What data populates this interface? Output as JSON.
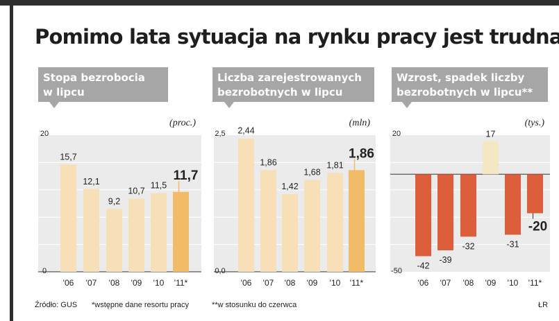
{
  "title": "Pomimo lata sytuacja na rynku pracy jest trudna",
  "chart_data": [
    {
      "type": "bar",
      "title": "Stopa bezrobocia w lipcu",
      "unit": "(proc.)",
      "categories": [
        "'06",
        "'07",
        "'08",
        "'09",
        "'10",
        "'11*"
      ],
      "values": [
        15.7,
        12.1,
        9.2,
        10.7,
        11.5,
        11.7
      ],
      "value_labels": [
        "15,7",
        "12,1",
        "9,2",
        "10,7",
        "11,5",
        "11,7"
      ],
      "ylim": [
        0,
        20
      ],
      "yticks": [
        "0",
        "20"
      ],
      "highlight_index": 5
    },
    {
      "type": "bar",
      "title": "Liczba zarejestrowanych bezrobotnych w lipcu",
      "unit": "(mln)",
      "categories": [
        "'06",
        "'07",
        "'08",
        "'09",
        "'10",
        "'11*"
      ],
      "values": [
        2.44,
        1.86,
        1.42,
        1.68,
        1.81,
        1.86
      ],
      "value_labels": [
        "2,44",
        "1,86",
        "1,42",
        "1,68",
        "1,81",
        "1,86"
      ],
      "ylim": [
        0,
        2.5
      ],
      "yticks": [
        "0,0",
        "2,5"
      ],
      "highlight_index": 5
    },
    {
      "type": "bar",
      "title": "Wzrost, spadek liczby bezrobotnych w lipcu**",
      "unit": "(tys.)",
      "categories": [
        "'06",
        "'07",
        "'08",
        "'09",
        "'10",
        "'11*"
      ],
      "values": [
        -42,
        -39,
        -32,
        17,
        -31,
        -20
      ],
      "value_labels": [
        "-42",
        "-39",
        "-32",
        "17",
        "-31",
        "-20"
      ],
      "ylim": [
        -50,
        20
      ],
      "yticks": [
        "-50",
        "20"
      ],
      "highlight_index": 5
    }
  ],
  "footer": {
    "source": "Źródło: GUS",
    "note1": "*wstępne dane resortu pracy",
    "note2": "**w stosunku do czerwca",
    "author": "ŁR"
  },
  "colors": {
    "bar_normal": "#f7dfb7",
    "bar_highlight": "#f1bb68",
    "bar_negative": "#dc5e3a",
    "bar_positive": "#f6e7c4",
    "panel_bg": "#ebebeb",
    "label_box": "#a6a6a6",
    "grid": "#ffffff",
    "text": "#222222"
  }
}
